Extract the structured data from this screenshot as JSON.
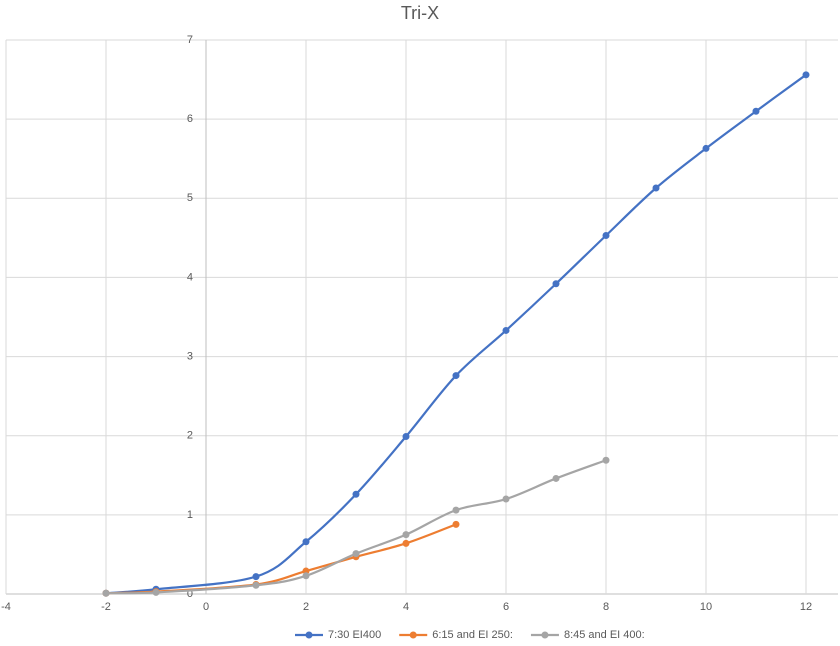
{
  "chart_data": {
    "type": "line",
    "title": "Tri-X",
    "series": [
      {
        "name": "7:30 EI400",
        "color": "#4472c4",
        "x": [
          -2,
          -1,
          1,
          2,
          3,
          4,
          5,
          6,
          7,
          8,
          9,
          10,
          11,
          12
        ],
        "values": [
          0.01,
          0.06,
          0.22,
          0.66,
          1.26,
          1.99,
          2.76,
          3.33,
          3.92,
          4.53,
          5.13,
          5.63,
          6.1,
          6.56
        ]
      },
      {
        "name": "6:15 and EI 250:",
        "color": "#ed7d31",
        "x": [
          -2,
          -1,
          1,
          2,
          3,
          4,
          5
        ],
        "values": [
          0.01,
          0.03,
          0.12,
          0.29,
          0.47,
          0.64,
          0.88
        ]
      },
      {
        "name": "8:45 and EI 400:",
        "color": "#a5a5a5",
        "x": [
          -2,
          -1,
          1,
          2,
          3,
          4,
          5,
          6,
          7,
          8
        ],
        "values": [
          0.01,
          0.02,
          0.11,
          0.23,
          0.51,
          0.75,
          1.06,
          1.2,
          1.46,
          1.69
        ]
      }
    ],
    "xlim": [
      -4,
      12
    ],
    "xticks": [
      -4,
      -2,
      0,
      2,
      4,
      6,
      8,
      10,
      12
    ],
    "ylim": [
      0,
      7
    ],
    "yticks": [
      0,
      1,
      2,
      3,
      4,
      5,
      6,
      7
    ],
    "grid": true,
    "smooth": true,
    "legend": "bottom"
  }
}
